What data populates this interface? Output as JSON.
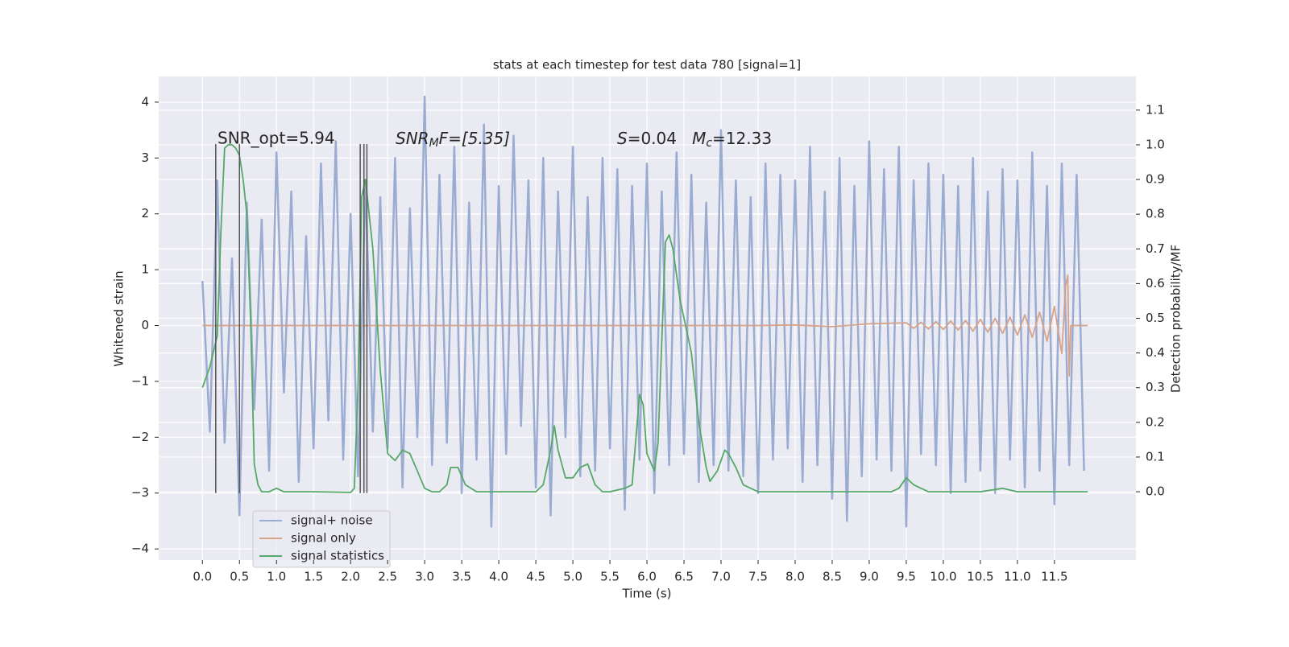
{
  "chart_data": {
    "type": "line",
    "title": "stats at each timestep for test data 780 [signal=1]",
    "xlabel": "Time (s)",
    "ylabel": "Whitened strain",
    "y2label": "Detection probability/MF",
    "annotation_snr_opt": "SNR_opt=5.94",
    "annotation_snr_mf": [
      "SNR",
      "M",
      "F=[5.35]"
    ],
    "annotation_stats": [
      "S",
      "=0.04   ",
      "M",
      "c",
      "=12.33"
    ],
    "grid": true,
    "legend": "lower left",
    "xlim": [
      -0.59,
      12.6
    ],
    "ylim": [
      -4.2,
      4.46
    ],
    "y2lim": [
      -0.197,
      1.197
    ],
    "xticks": [
      {
        "value": 0,
        "label": "0.0"
      },
      0.5,
      {
        "value": 1,
        "label": "1.0"
      },
      1.5,
      {
        "value": 2,
        "label": "2.0"
      },
      2.5,
      {
        "value": 3,
        "label": "3.0"
      },
      3.5,
      {
        "value": 4,
        "label": "4.0"
      },
      4.5,
      {
        "value": 5,
        "label": "5.0"
      },
      5.5,
      {
        "value": 6,
        "label": "6.0"
      },
      6.5,
      {
        "value": 7,
        "label": "7.0"
      },
      7.5,
      {
        "value": 8,
        "label": "8.0"
      },
      8.5,
      {
        "value": 9,
        "label": "9.0"
      },
      9.5,
      {
        "value": 10,
        "label": "10.0"
      },
      10.5,
      {
        "value": 11,
        "label": "11.0"
      },
      11.5
    ],
    "yticks": [
      {
        "value": -4,
        "label": "−4"
      },
      {
        "value": -3,
        "label": "−3"
      },
      {
        "value": -2,
        "label": "−2"
      },
      {
        "value": -1,
        "label": "−1"
      },
      0,
      1,
      2,
      3,
      4
    ],
    "y2ticks": [
      {
        "value": 0,
        "label": "0.0"
      },
      0.1,
      0.2,
      0.3,
      0.4,
      0.5,
      0.6,
      0.7,
      0.8,
      0.9,
      {
        "value": 1,
        "label": "1.0"
      },
      1.1
    ],
    "vlines": {
      "x": [
        0.18,
        0.5,
        2.13,
        2.18,
        2.22
      ],
      "ymin": -3,
      "ymax": 3.25,
      "color": "#555555"
    },
    "series": [
      {
        "name": "signal+ noise",
        "color": "#9aacd2",
        "x": [
          0,
          0.1,
          0.2,
          0.3,
          0.4,
          0.5,
          0.6,
          0.7,
          0.8,
          0.9,
          1,
          1.1,
          1.2,
          1.3,
          1.4,
          1.5,
          1.6,
          1.7,
          1.8,
          1.9,
          2,
          2.1,
          2.2,
          2.3,
          2.4,
          2.5,
          2.6,
          2.7,
          2.8,
          2.9,
          3,
          3.1,
          3.2,
          3.3,
          3.4,
          3.5,
          3.6,
          3.7,
          3.8,
          3.9,
          4,
          4.1,
          4.2,
          4.3,
          4.4,
          4.5,
          4.6,
          4.7,
          4.8,
          4.9,
          5,
          5.1,
          5.2,
          5.3,
          5.4,
          5.5,
          5.6,
          5.7,
          5.8,
          5.9,
          6,
          6.1,
          6.2,
          6.3,
          6.4,
          6.5,
          6.6,
          6.7,
          6.8,
          6.9,
          7,
          7.1,
          7.2,
          7.3,
          7.4,
          7.5,
          7.6,
          7.7,
          7.8,
          7.9,
          8,
          8.1,
          8.2,
          8.3,
          8.4,
          8.5,
          8.6,
          8.7,
          8.8,
          8.9,
          9,
          9.1,
          9.2,
          9.3,
          9.4,
          9.5,
          9.6,
          9.7,
          9.8,
          9.9,
          10,
          10.1,
          10.2,
          10.3,
          10.4,
          10.5,
          10.6,
          10.7,
          10.8,
          10.9,
          11,
          11.1,
          11.2,
          11.3,
          11.4,
          11.5,
          11.6,
          11.7,
          11.8,
          11.9
        ],
        "values": [
          0.8,
          -1.9,
          2.6,
          -2.1,
          1.2,
          -3.4,
          2.2,
          -1.5,
          1.9,
          -2.6,
          3.1,
          -1.2,
          2.4,
          -2.8,
          1.6,
          -2.2,
          2.9,
          -1.7,
          3.3,
          -2.4,
          2.0,
          -2.7,
          2.6,
          -1.9,
          2.3,
          -2.2,
          3.0,
          -2.9,
          2.1,
          -2.0,
          4.1,
          -2.5,
          2.7,
          -2.1,
          3.2,
          -3.0,
          2.2,
          -2.4,
          3.6,
          -3.6,
          2.5,
          -2.3,
          3.4,
          -1.8,
          2.6,
          -2.9,
          3.0,
          -3.4,
          2.4,
          -2.0,
          3.2,
          -2.7,
          2.3,
          -2.6,
          3.0,
          -2.2,
          2.8,
          -3.3,
          2.5,
          -2.4,
          2.9,
          -3.0,
          2.4,
          -2.5,
          3.1,
          -2.3,
          2.7,
          -2.8,
          2.2,
          -2.5,
          3.5,
          -2.6,
          2.6,
          -2.7,
          2.3,
          -3.0,
          2.9,
          -2.4,
          2.7,
          -2.2,
          2.6,
          -2.8,
          3.2,
          -2.5,
          2.4,
          -3.1,
          3.0,
          -3.5,
          2.5,
          -2.7,
          3.3,
          -2.4,
          2.8,
          -2.6,
          3.2,
          -3.6,
          2.6,
          -2.3,
          2.9,
          -2.5,
          2.7,
          -3.0,
          2.5,
          -2.8,
          3.0,
          -2.6,
          2.4,
          -3.0,
          2.8,
          -2.4,
          2.6,
          -2.9,
          3.1,
          -2.6,
          2.5,
          -3.2,
          2.9,
          -2.5,
          2.7,
          -2.6
        ]
      },
      {
        "name": "signal only",
        "color": "#d8a28a",
        "x": [
          0,
          7.5,
          8,
          8.5,
          9,
          9.5,
          9.6,
          9.7,
          9.8,
          9.9,
          10,
          10.1,
          10.2,
          10.3,
          10.4,
          10.5,
          10.6,
          10.7,
          10.8,
          10.9,
          11,
          11.1,
          11.2,
          11.3,
          11.4,
          11.5,
          11.6,
          11.65,
          11.68,
          11.7,
          11.72,
          11.95
        ],
        "values": [
          0,
          0,
          0.01,
          -0.02,
          0.03,
          0.05,
          -0.05,
          0.06,
          -0.06,
          0.07,
          -0.07,
          0.08,
          -0.08,
          0.09,
          -0.1,
          0.11,
          -0.12,
          0.13,
          -0.14,
          0.15,
          -0.17,
          0.19,
          -0.21,
          0.24,
          -0.28,
          0.34,
          -0.5,
          0.7,
          0.9,
          -0.9,
          0,
          0
        ]
      },
      {
        "name": "signal statistics",
        "color": "#55a868",
        "axis": "y2",
        "x": [
          0,
          0.1,
          0.2,
          0.25,
          0.3,
          0.35,
          0.4,
          0.45,
          0.5,
          0.55,
          0.6,
          0.65,
          0.7,
          0.75,
          0.8,
          0.9,
          1,
          1.1,
          1.5,
          2,
          2.05,
          2.1,
          2.15,
          2.2,
          2.3,
          2.4,
          2.5,
          2.6,
          2.7,
          2.8,
          2.9,
          3,
          3.1,
          3.2,
          3.3,
          3.35,
          3.45,
          3.55,
          3.7,
          4,
          4.5,
          4.6,
          4.7,
          4.75,
          4.8,
          4.9,
          5,
          5.1,
          5.2,
          5.3,
          5.4,
          5.5,
          5.7,
          5.8,
          5.9,
          5.95,
          6,
          6.1,
          6.15,
          6.25,
          6.3,
          6.35,
          6.45,
          6.6,
          6.7,
          6.8,
          6.85,
          6.95,
          7.05,
          7.1,
          7.2,
          7.3,
          7.5,
          8,
          9,
          9.3,
          9.4,
          9.5,
          9.6,
          9.8,
          10.5,
          10.8,
          11,
          11.5,
          11.95
        ],
        "values": [
          0.3,
          0.36,
          0.45,
          0.75,
          0.99,
          1.0,
          1.0,
          0.99,
          0.97,
          0.9,
          0.8,
          0.5,
          0.08,
          0.02,
          0,
          0,
          0.01,
          0,
          0,
          -0.002,
          0.01,
          0.3,
          0.85,
          0.9,
          0.7,
          0.35,
          0.11,
          0.09,
          0.12,
          0.11,
          0.06,
          0.01,
          0,
          0,
          0.02,
          0.07,
          0.07,
          0.02,
          0,
          0,
          0,
          0.02,
          0.12,
          0.19,
          0.12,
          0.04,
          0.04,
          0.07,
          0.08,
          0.02,
          0,
          0,
          0.01,
          0.02,
          0.28,
          0.25,
          0.11,
          0.06,
          0.14,
          0.72,
          0.74,
          0.7,
          0.55,
          0.4,
          0.2,
          0.07,
          0.03,
          0.06,
          0.12,
          0.11,
          0.07,
          0.02,
          0,
          0,
          0,
          0,
          0.01,
          0.04,
          0.02,
          0,
          0,
          0.01,
          0,
          0,
          0
        ]
      }
    ]
  }
}
